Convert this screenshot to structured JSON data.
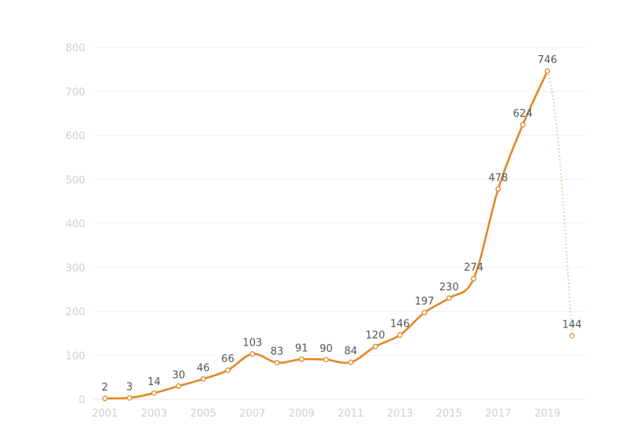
{
  "chart_data": {
    "type": "line",
    "title": "",
    "xlabel": "",
    "ylabel": "",
    "ylim": [
      0,
      800
    ],
    "yticks": [
      0,
      100,
      200,
      300,
      400,
      500,
      600,
      700,
      800
    ],
    "xticks": [
      2001,
      2003,
      2005,
      2007,
      2009,
      2011,
      2013,
      2015,
      2017,
      2019
    ],
    "grid": true,
    "smooth": true,
    "line_color": "#e0892b",
    "series": [
      {
        "x": [
          2001,
          2002,
          2003,
          2004,
          2005,
          2006,
          2007,
          2008,
          2009,
          2010,
          2011,
          2012,
          2013,
          2014,
          2015,
          2016,
          2017,
          2018,
          2019
        ],
        "values": [
          2,
          3,
          14,
          30,
          46,
          66,
          103,
          83,
          91,
          90,
          84,
          120,
          146,
          197,
          230,
          274,
          478,
          624,
          746
        ],
        "style": "solid"
      },
      {
        "x": [
          2019,
          2020
        ],
        "values": [
          746,
          144
        ],
        "style": "dotted"
      }
    ]
  }
}
